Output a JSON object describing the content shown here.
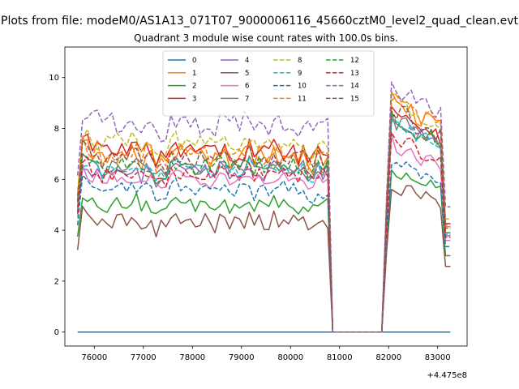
{
  "chart_data": {
    "type": "line",
    "suptitle": "Plots from file: modeM0/AS1A13_071T07_9000006116_45660cztM0_level2_quad_clean.evt",
    "title": "Quadrant 3 module wise count rates with 100.0s bins.",
    "xlabel": "",
    "ylabel": "",
    "x_offset_label": "+4.475e8",
    "x_offset": 447500000,
    "xlim": [
      75400,
      83600
    ],
    "ylim": [
      -0.55,
      11.2
    ],
    "xticks": [
      76000,
      77000,
      78000,
      79000,
      80000,
      81000,
      82000,
      83000
    ],
    "xtick_labels": [
      "76000",
      "77000",
      "78000",
      "79000",
      "80000",
      "81000",
      "82000",
      "83000"
    ],
    "yticks": [
      0,
      2,
      4,
      6,
      8,
      10
    ],
    "ytick_labels": [
      "0",
      "2",
      "4",
      "6",
      "8",
      "10"
    ],
    "grid": false,
    "legend": {
      "placement": "top-center",
      "columns": 4
    },
    "segment_1_x": [
      75660,
      83260
    ],
    "gap_start": 80860,
    "gap_end": 81860,
    "series": [
      {
        "name": "0",
        "color": "#1f77b4",
        "dash": "solid",
        "base": 0,
        "amp": 0,
        "early": 1,
        "late": 1
      },
      {
        "name": "1",
        "color": "#ff7f0e",
        "dash": "solid",
        "base": 6.9,
        "amp": 0.4,
        "early": 1.12,
        "late": 1.33
      },
      {
        "name": "2",
        "color": "#2ca02c",
        "dash": "solid",
        "base": 5.0,
        "amp": 0.3,
        "early": 1.12,
        "late": 1.25
      },
      {
        "name": "3",
        "color": "#d62728",
        "dash": "solid",
        "base": 7.1,
        "amp": 0.4,
        "early": 1.18,
        "late": 1.25
      },
      {
        "name": "4",
        "color": "#9467bd",
        "dash": "solid",
        "base": 6.3,
        "amp": 0.3,
        "early": 1.12,
        "late": 1.35
      },
      {
        "name": "5",
        "color": "#8c564b",
        "dash": "solid",
        "base": 4.3,
        "amp": 0.3,
        "early": 1.18,
        "late": 1.35
      },
      {
        "name": "6",
        "color": "#e377c2",
        "dash": "solid",
        "base": 6.0,
        "amp": 0.3,
        "early": 1.15,
        "late": 1.25
      },
      {
        "name": "7",
        "color": "#7f7f7f",
        "dash": "solid",
        "base": 6.5,
        "amp": 0.3,
        "early": 1.15,
        "late": 1.3
      },
      {
        "name": "8",
        "color": "#bcbd22",
        "dash": "dashed",
        "base": 7.4,
        "amp": 0.4,
        "early": 1.1,
        "late": 1.25
      },
      {
        "name": "9",
        "color": "#17becf",
        "dash": "dashed",
        "base": 6.4,
        "amp": 0.3,
        "early": 1.12,
        "late": 1.3
      },
      {
        "name": "10",
        "color": "#1f77b4",
        "dash": "dashed",
        "base": 5.6,
        "amp": 0.3,
        "early": 1.12,
        "late": 1.2
      },
      {
        "name": "11",
        "color": "#ff7f0e",
        "dash": "dashed",
        "base": 7.0,
        "amp": 0.4,
        "early": 1.15,
        "late": 1.35
      },
      {
        "name": "12",
        "color": "#2ca02c",
        "dash": "dashed",
        "base": 6.5,
        "amp": 0.3,
        "early": 1.15,
        "late": 1.3
      },
      {
        "name": "13",
        "color": "#d62728",
        "dash": "dashed",
        "base": 6.2,
        "amp": 0.3,
        "early": 1.18,
        "late": 1.25
      },
      {
        "name": "14",
        "color": "#9467bd",
        "dash": "dashed",
        "base": 8.2,
        "amp": 0.45,
        "early": 1.12,
        "late": 1.2
      },
      {
        "name": "15",
        "color": "#8c564b",
        "dash": "dashed",
        "base": 6.8,
        "amp": 0.4,
        "early": 1.12,
        "late": 1.3
      }
    ]
  }
}
